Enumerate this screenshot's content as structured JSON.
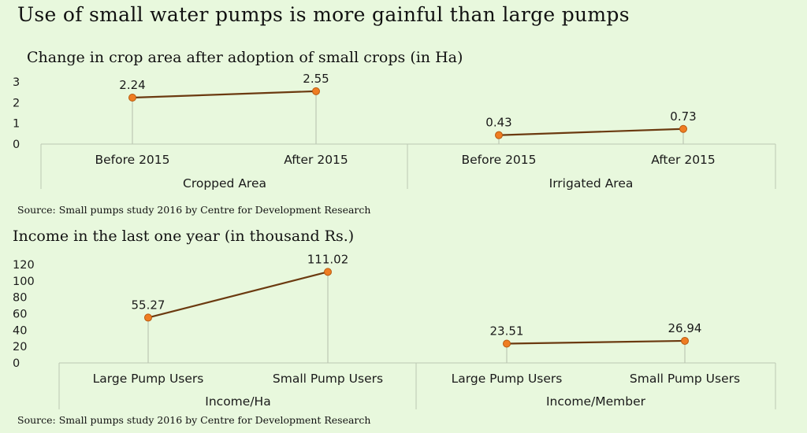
{
  "title": "Use of small water pumps is more gainful than large pumps",
  "colors": {
    "background": "#e8f8dd",
    "line": "#6b3a10",
    "marker": "#ef7d22",
    "marker_edge": "#b85a10",
    "grid": "#bcc8b4"
  },
  "chart_data": [
    {
      "type": "line",
      "title": "Change in crop area after adoption of small crops (in Ha)",
      "ylim": [
        0,
        3
      ],
      "yticks": [
        "0",
        "1",
        "2",
        "3"
      ],
      "ytick_values": [
        0,
        1,
        2,
        3
      ],
      "groups": [
        {
          "label": "Cropped Area",
          "categories": [
            "Before 2015",
            "After 2015"
          ],
          "values": [
            2.24,
            2.55
          ],
          "labels": [
            "2.24",
            "2.55"
          ]
        },
        {
          "label": "Irrigated Area",
          "categories": [
            "Before 2015",
            "After 2015"
          ],
          "values": [
            0.43,
            0.73
          ],
          "labels": [
            "0.43",
            "0.73"
          ]
        }
      ],
      "source": "Source: Small pumps study 2016 by Centre for Development Research"
    },
    {
      "type": "line",
      "title": "Income in the last one year (in thousand Rs.)",
      "ylim": [
        0,
        120
      ],
      "yticks": [
        "0",
        "20",
        "40",
        "60",
        "80",
        "100",
        "120"
      ],
      "ytick_values": [
        0,
        20,
        40,
        60,
        80,
        100,
        120
      ],
      "groups": [
        {
          "label": "Income/Ha",
          "categories": [
            "Large Pump Users",
            "Small Pump Users"
          ],
          "values": [
            55.27,
            111.02
          ],
          "labels": [
            "55.27",
            "111.02"
          ]
        },
        {
          "label": "Income/Member",
          "categories": [
            "Large Pump Users",
            "Small Pump Users"
          ],
          "values": [
            23.51,
            26.94
          ],
          "labels": [
            "23.51",
            "26.94"
          ]
        }
      ],
      "source": "Source: Small pumps study 2016 by Centre for Development Research"
    }
  ]
}
